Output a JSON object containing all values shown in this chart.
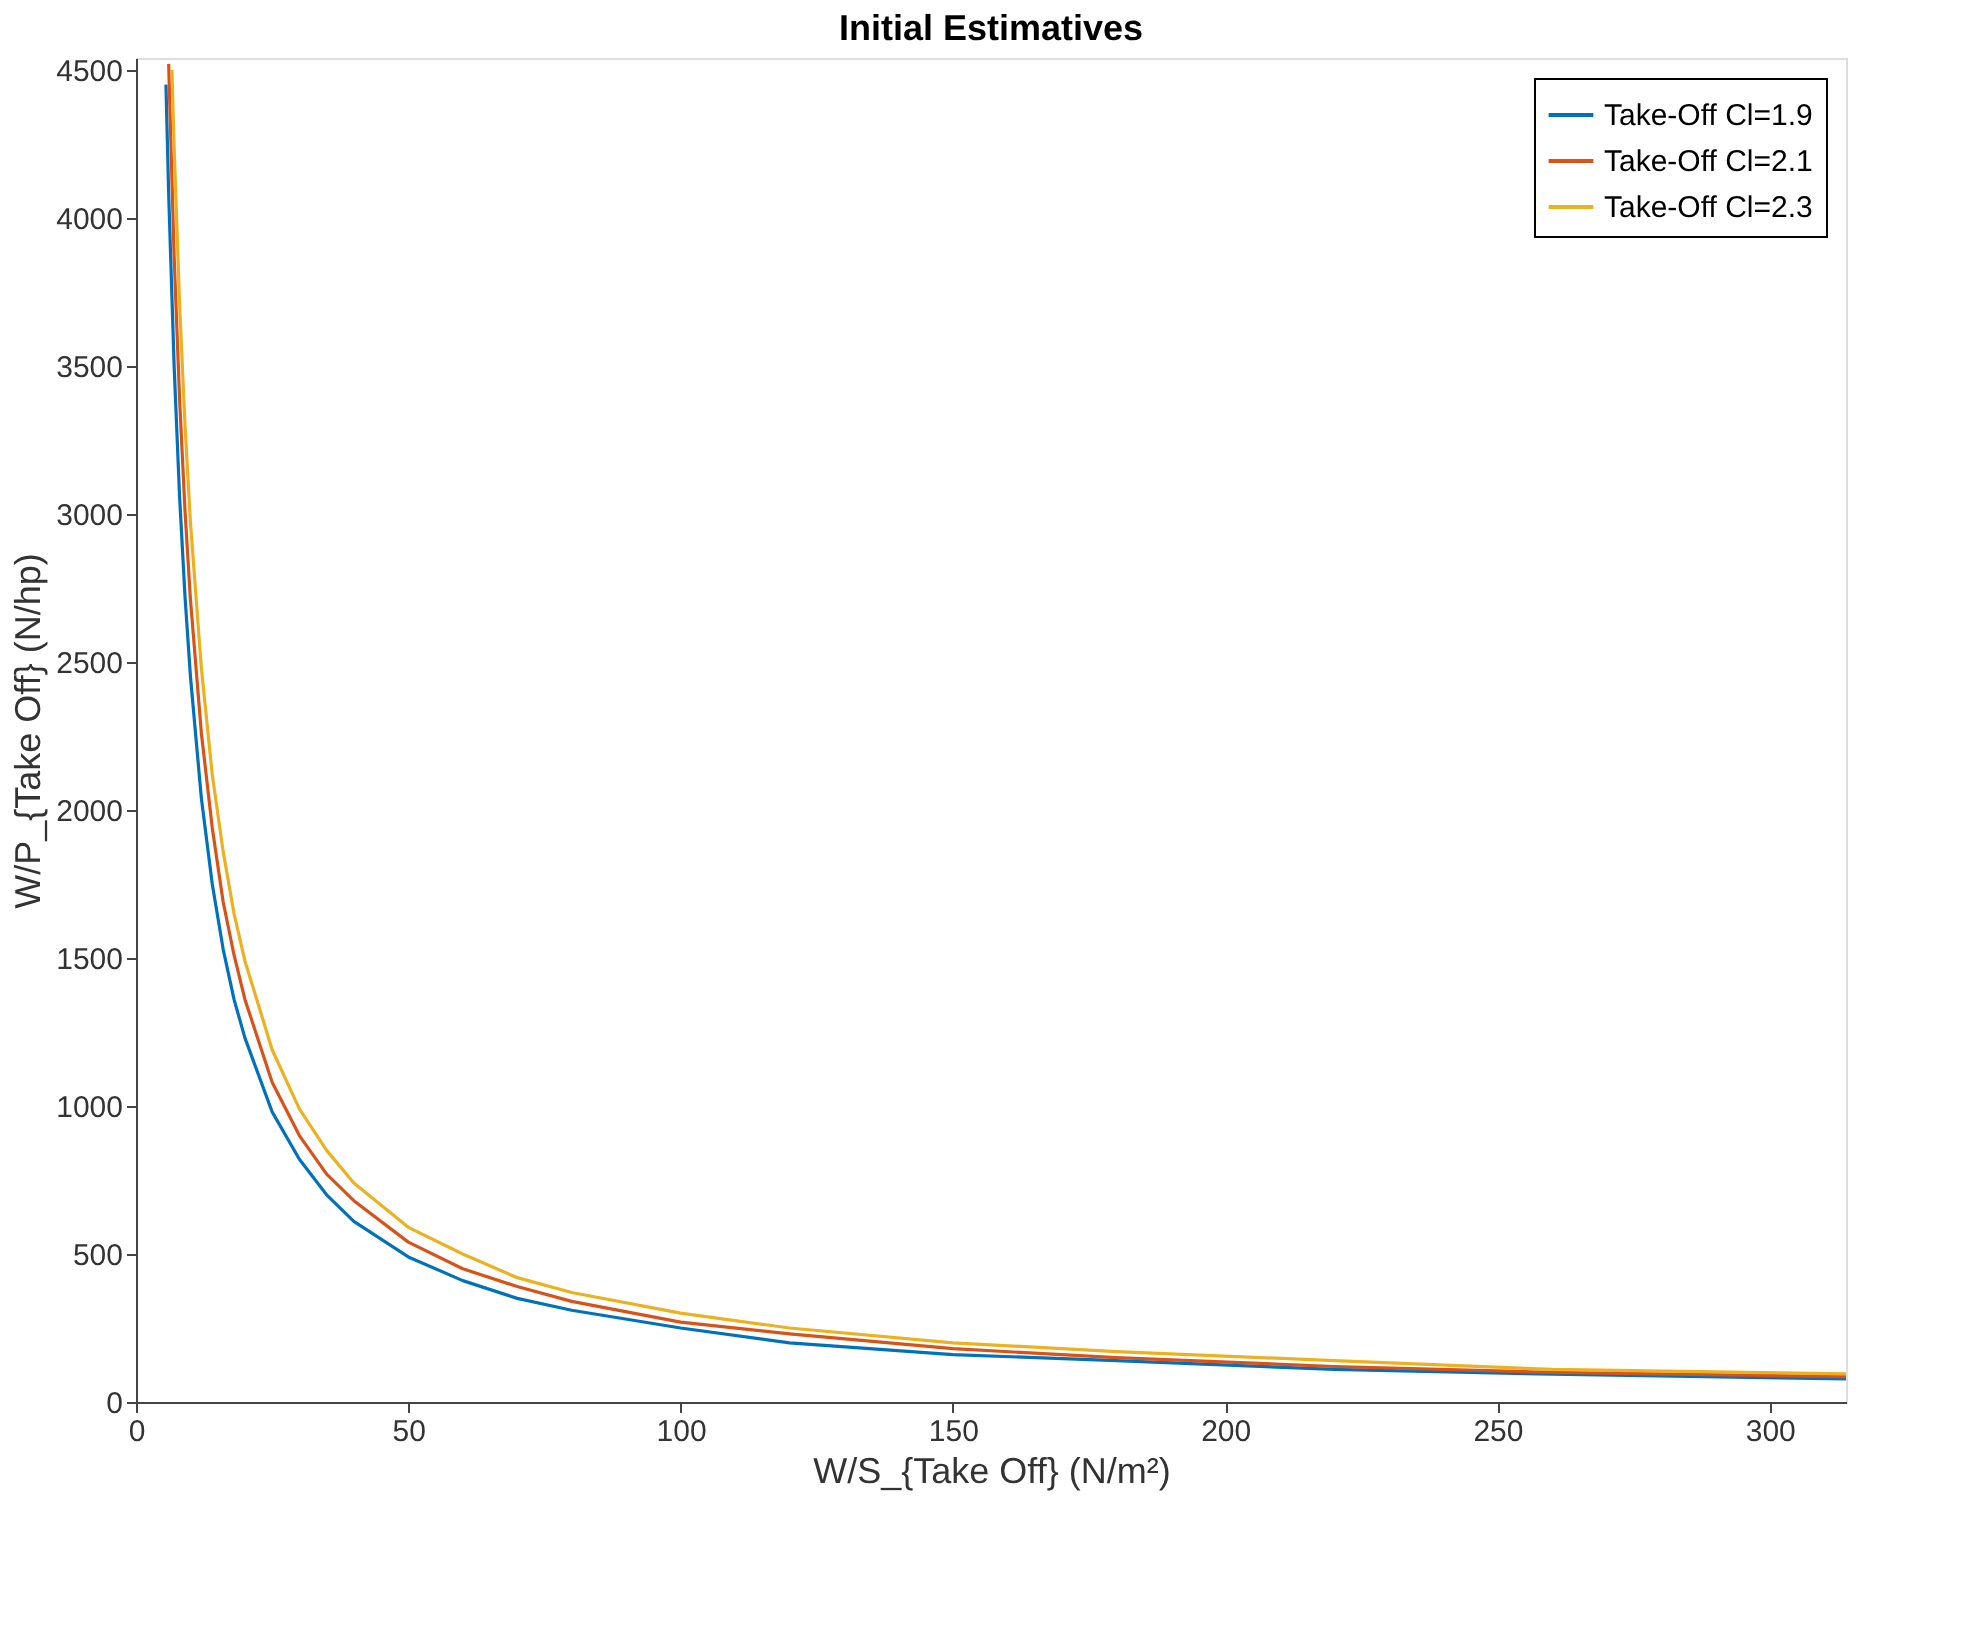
{
  "chart_data": {
    "type": "line",
    "title": "Initial Estimatives",
    "xlabel": "W/S_{Take Off} (N/m²)",
    "ylabel": "W/P_{Take Off} (N/hp)",
    "xlim": [
      0,
      314
    ],
    "ylim": [
      0,
      4540
    ],
    "xticks": [
      0,
      50,
      100,
      150,
      200,
      250,
      300
    ],
    "yticks": [
      0,
      500,
      1000,
      1500,
      2000,
      2500,
      3000,
      3500,
      4000,
      4500
    ],
    "grid": false,
    "legend": "top right",
    "marker": "none",
    "line_style": "solid",
    "series": [
      {
        "name": "Take-Off Cl=1.9",
        "color": "#0072bd",
        "x": [
          5.5,
          6,
          7,
          8,
          9,
          10,
          12,
          14,
          16,
          18,
          20,
          25,
          30,
          35,
          40,
          50,
          60,
          70,
          80,
          100,
          120,
          150,
          180,
          220,
          260,
          314
        ],
        "values": [
          4450,
          4080,
          3500,
          3060,
          2720,
          2450,
          2040,
          1750,
          1530,
          1360,
          1230,
          980,
          820,
          700,
          610,
          490,
          410,
          350,
          310,
          250,
          200,
          160,
          140,
          110,
          94,
          78
        ]
      },
      {
        "name": "Take-Off Cl=2.1",
        "color": "#d95319",
        "x": [
          6,
          7,
          8,
          9,
          10,
          12,
          14,
          16,
          18,
          20,
          25,
          30,
          35,
          40,
          50,
          60,
          70,
          80,
          100,
          120,
          150,
          180,
          220,
          260,
          314
        ],
        "values": [
          4520,
          3870,
          3390,
          3010,
          2710,
          2260,
          1940,
          1690,
          1510,
          1360,
          1080,
          900,
          770,
          680,
          540,
          450,
          390,
          340,
          270,
          230,
          180,
          150,
          120,
          100,
          86
        ]
      },
      {
        "name": "Take-Off Cl=2.3",
        "color": "#edb120",
        "x": [
          6.6,
          7,
          8,
          9,
          10,
          12,
          14,
          16,
          18,
          20,
          25,
          30,
          35,
          40,
          50,
          60,
          70,
          80,
          100,
          120,
          150,
          180,
          220,
          260,
          314
        ],
        "values": [
          4500,
          4240,
          3710,
          3300,
          2970,
          2480,
          2120,
          1860,
          1650,
          1490,
          1190,
          990,
          850,
          740,
          590,
          500,
          420,
          370,
          300,
          250,
          200,
          170,
          140,
          110,
          95
        ]
      }
    ]
  }
}
